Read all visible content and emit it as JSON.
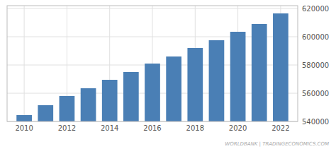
{
  "chart_data": {
    "type": "bar",
    "x": [
      2010,
      2011,
      2012,
      2013,
      2014,
      2015,
      2016,
      2017,
      2018,
      2019,
      2020,
      2021,
      2022
    ],
    "values": [
      544500,
      551500,
      558000,
      563500,
      569500,
      575000,
      581000,
      586000,
      592000,
      597500,
      603500,
      609000,
      616500
    ],
    "color": "#4a7fb5",
    "xlim": [
      2009.2,
      2022.8
    ],
    "ylim": [
      540000,
      622000
    ],
    "xticks": [
      2010,
      2012,
      2014,
      2016,
      2018,
      2020,
      2022
    ],
    "yticks": [
      540000,
      560000,
      580000,
      600000,
      620000
    ],
    "grid": true,
    "annotations": [
      "WORLDBANK | TRADINGECONOMICS.COM"
    ]
  }
}
